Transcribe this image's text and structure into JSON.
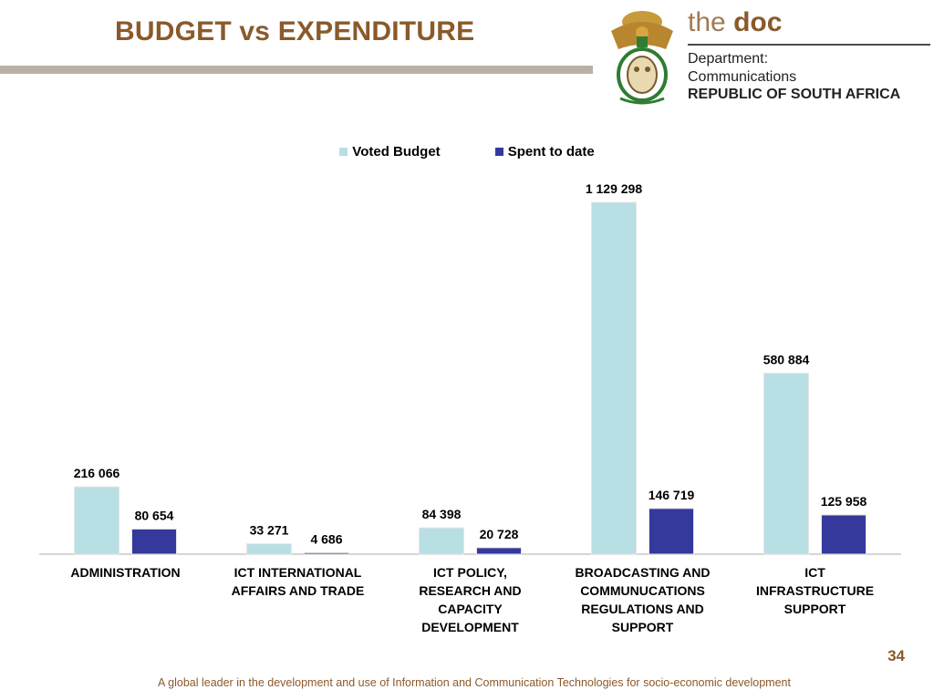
{
  "title": "BUDGET vs EXPENDITURE",
  "logo": {
    "the": "the",
    "doc": "doc",
    "line1": "Department:",
    "line2": "Communications",
    "line3": "REPUBLIC OF SOUTH AFRICA"
  },
  "page_number": "34",
  "footer": "A global leader in the development and use of Information and Communication Technologies for socio-economic development",
  "colors": {
    "title": "#8a5a2b",
    "voted_budget": "#b8dfe3",
    "spent_to_date": "#35399c"
  },
  "chart_data": {
    "type": "bar",
    "categories": [
      [
        "ADMINISTRATION"
      ],
      [
        "ICT INTERNATIONAL",
        "AFFAIRS AND TRADE"
      ],
      [
        "ICT POLICY,",
        "RESEARCH AND",
        "CAPACITY",
        "DEVELOPMENT"
      ],
      [
        "BROADCASTING AND",
        "COMMUNUCATIONS",
        "REGULATIONS AND",
        "SUPPORT"
      ],
      [
        "ICT",
        "INFRASTRUCTURE",
        "SUPPORT"
      ]
    ],
    "series": [
      {
        "name": "Voted Budget",
        "color": "#b8dfe3",
        "values": [
          216066,
          33271,
          84398,
          1129298,
          580884
        ],
        "labels": [
          "216 066",
          "33 271",
          "84 398",
          "1 129 298",
          "580 884"
        ]
      },
      {
        "name": "Spent to date",
        "color": "#35399c",
        "values": [
          80654,
          4686,
          20728,
          146719,
          125958
        ],
        "labels": [
          "80 654",
          "4 686",
          "20 728",
          "146 719",
          "125 958"
        ]
      }
    ],
    "legend_position": "top-center",
    "grid": false
  }
}
